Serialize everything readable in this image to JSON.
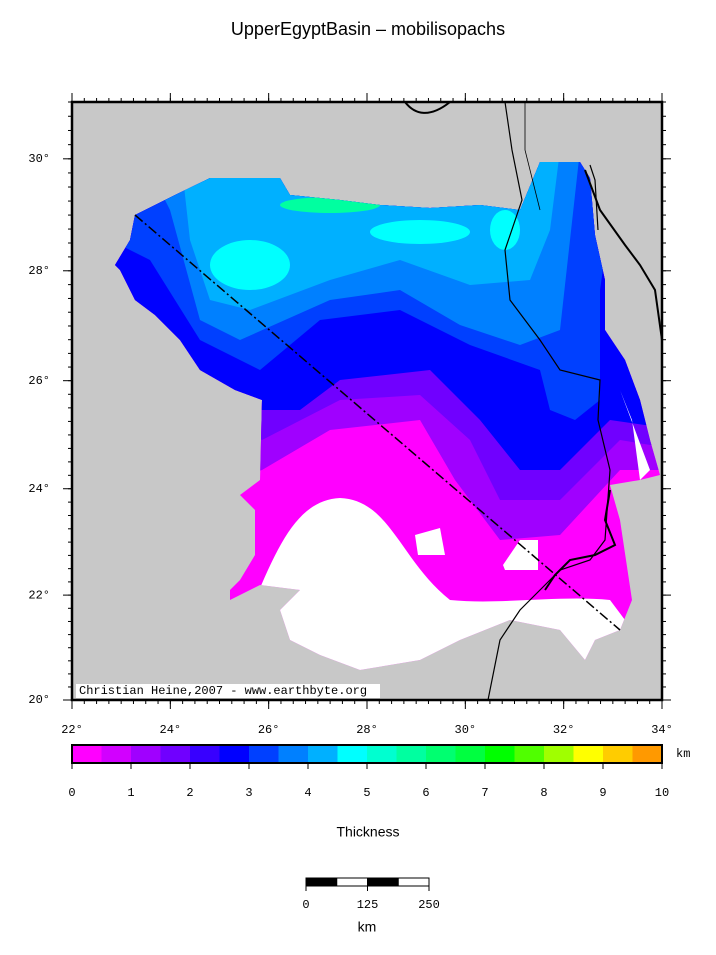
{
  "title": "UpperEgyptBasin – mobilisopachs",
  "map": {
    "xlim": [
      22,
      34
    ],
    "ylim": [
      20,
      31
    ],
    "xticks": [
      {
        "value": 22,
        "label": "22°"
      },
      {
        "value": 24,
        "label": "24°"
      },
      {
        "value": 26,
        "label": "26°"
      },
      {
        "value": 28,
        "label": "28°"
      },
      {
        "value": 30,
        "label": "30°"
      },
      {
        "value": 32,
        "label": "32°"
      },
      {
        "value": 34,
        "label": "34°"
      }
    ],
    "yticks": [
      {
        "value": 20,
        "label": "20°"
      },
      {
        "value": 22,
        "label": "22°"
      },
      {
        "value": 24,
        "label": "24°"
      },
      {
        "value": 26,
        "label": "26°"
      },
      {
        "value": 28,
        "label": "28°"
      },
      {
        "value": 30,
        "label": "30°"
      }
    ],
    "credit": "Christian Heine,2007 - www.earthbyte.org"
  },
  "colorbar": {
    "label": "Thickness",
    "unit": "km",
    "lim": [
      0,
      10
    ],
    "ticks": [
      0,
      1,
      2,
      3,
      4,
      5,
      6,
      7,
      8,
      9,
      10
    ],
    "colors": [
      "#ff00ff",
      "#d200ff",
      "#a000ff",
      "#7000ff",
      "#3800ff",
      "#0000ff",
      "#0040ff",
      "#0080ff",
      "#00b0ff",
      "#00ffff",
      "#00ffd0",
      "#00ffa0",
      "#00ff70",
      "#00ff40",
      "#00ff00",
      "#50ff00",
      "#a0ff00",
      "#ffff00",
      "#ffcc00",
      "#ff9900"
    ]
  },
  "scale_bar": {
    "lim": [
      0,
      250
    ],
    "ticks": [
      0,
      125,
      250
    ],
    "unit": "km"
  }
}
